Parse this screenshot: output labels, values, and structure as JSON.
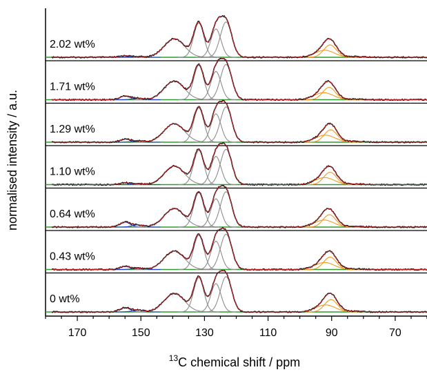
{
  "chart_data": {
    "type": "line",
    "xlabel_sup": "13",
    "xlabel_main": "C chemical shift / ppm",
    "ylabel": "normalised intensity / a.u.",
    "xlim": [
      180,
      60
    ],
    "x_reversed": true,
    "xticks": [
      170,
      150,
      130,
      110,
      90,
      70
    ],
    "grid": false,
    "colors": {
      "experimental": "#000000",
      "fit_sum": "#c0272d",
      "aromatic_components": "#8c8c8c",
      "peak_155_components": "#1f3fc8",
      "peak_90_components": "#f39a1f",
      "baseline_components": "#2f9a2f"
    },
    "peaks": [
      {
        "center": 155.0,
        "width": 1.6,
        "height": 0.07,
        "group": "blue"
      },
      {
        "center": 151.0,
        "width": 1.8,
        "height": 0.03,
        "group": "blue"
      },
      {
        "center": 139.5,
        "width": 3.2,
        "height": 0.42,
        "group": "gray"
      },
      {
        "center": 131.8,
        "width": 1.6,
        "height": 0.78,
        "group": "gray"
      },
      {
        "center": 126.4,
        "width": 1.6,
        "height": 0.64,
        "group": "gray"
      },
      {
        "center": 123.2,
        "width": 1.8,
        "height": 0.8,
        "group": "gray"
      },
      {
        "center": 90.5,
        "width": 2.0,
        "height": 0.28,
        "group": "orange"
      },
      {
        "center": 92.2,
        "width": 3.0,
        "height": 0.16,
        "group": "orange"
      },
      {
        "center": 83.0,
        "width": 3.0,
        "height": 0.015,
        "group": "green"
      }
    ],
    "series": [
      {
        "name": "2.02 wt%",
        "blue_scale": 0.5,
        "orange_shift": 0.0
      },
      {
        "name": "1.71 wt%",
        "blue_scale": 1.2,
        "orange_shift": 0.3
      },
      {
        "name": "1.29 wt%",
        "blue_scale": 1.0,
        "orange_shift": -0.2
      },
      {
        "name": "1.10 wt%",
        "blue_scale": 0.6,
        "orange_shift": 0.0
      },
      {
        "name": "0.64 wt%",
        "blue_scale": 1.6,
        "orange_shift": 0.2
      },
      {
        "name": "0.43 wt%",
        "blue_scale": 1.0,
        "orange_shift": 0.0
      },
      {
        "name": "0 wt%",
        "blue_scale": 1.4,
        "orange_shift": -0.3
      }
    ]
  }
}
